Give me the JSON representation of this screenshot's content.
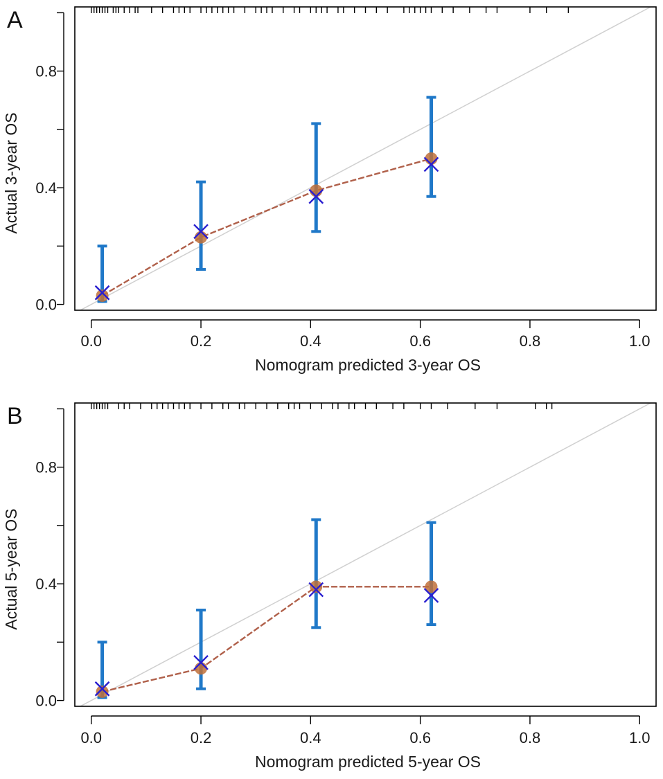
{
  "panels": [
    {
      "letter": "A",
      "xlabel": "Nomogram predicted 3-year OS",
      "ylabel": "Actual 3-year OS"
    },
    {
      "letter": "B",
      "xlabel": "Nomogram predicted 5-year OS",
      "ylabel": "Actual 5-year OS"
    }
  ],
  "colors": {
    "errorbar": "#1f78c8",
    "calibration_line": "#b0604a",
    "observed_dot": "#c0703a",
    "bias_corrected_x": "#2a1fd0",
    "ideal_line": "#d0d0d0",
    "rug": "#000000",
    "frame": "#000000"
  },
  "chart_data": [
    {
      "type": "scatter",
      "panel": "A",
      "title": "",
      "xlabel": "Nomogram predicted 3-year OS",
      "ylabel": "Actual 3-year OS",
      "xlim": [
        -0.03,
        1.03
      ],
      "ylim": [
        -0.02,
        1.02
      ],
      "xticks": [
        "0.0",
        "0.2",
        "0.4",
        "0.6",
        "0.8",
        "1.0"
      ],
      "xtick_values": [
        0.0,
        0.2,
        0.4,
        0.6,
        0.8,
        1.0
      ],
      "yticks": [
        "0.0",
        "0.4",
        "0.8"
      ],
      "ytick_values": [
        0.0,
        0.4,
        0.8
      ],
      "ymajor_ticks": [
        0.0,
        0.2,
        0.4,
        0.6,
        0.8,
        1.0
      ],
      "ideal_line": true,
      "grid": false,
      "points": [
        {
          "x": 0.02,
          "observed": 0.03,
          "bias_corrected": 0.04,
          "ci_low": 0.01,
          "ci_high": 0.2
        },
        {
          "x": 0.2,
          "observed": 0.23,
          "bias_corrected": 0.25,
          "ci_low": 0.12,
          "ci_high": 0.42
        },
        {
          "x": 0.41,
          "observed": 0.39,
          "bias_corrected": 0.37,
          "ci_low": 0.25,
          "ci_high": 0.62
        },
        {
          "x": 0.62,
          "observed": 0.5,
          "bias_corrected": 0.48,
          "ci_low": 0.37,
          "ci_high": 0.71
        }
      ],
      "rug": [
        0.0,
        0.005,
        0.01,
        0.015,
        0.02,
        0.025,
        0.03,
        0.04,
        0.045,
        0.05,
        0.06,
        0.07,
        0.08,
        0.085,
        0.11,
        0.13,
        0.15,
        0.16,
        0.17,
        0.18,
        0.2,
        0.21,
        0.22,
        0.23,
        0.24,
        0.25,
        0.26,
        0.28,
        0.3,
        0.31,
        0.32,
        0.33,
        0.35,
        0.37,
        0.38,
        0.4,
        0.41,
        0.42,
        0.43,
        0.45,
        0.46,
        0.48,
        0.5,
        0.52,
        0.54,
        0.57,
        0.58,
        0.59,
        0.6,
        0.61,
        0.62,
        0.64,
        0.66,
        0.69,
        0.72,
        0.74,
        0.8,
        0.83,
        0.87
      ]
    },
    {
      "type": "scatter",
      "panel": "B",
      "title": "",
      "xlabel": "Nomogram predicted 5-year OS",
      "ylabel": "Actual 5-year OS",
      "xlim": [
        -0.03,
        1.03
      ],
      "ylim": [
        -0.02,
        1.02
      ],
      "xticks": [
        "0.0",
        "0.2",
        "0.4",
        "0.6",
        "0.8",
        "1.0"
      ],
      "xtick_values": [
        0.0,
        0.2,
        0.4,
        0.6,
        0.8,
        1.0
      ],
      "yticks": [
        "0.0",
        "0.4",
        "0.8"
      ],
      "ytick_values": [
        0.0,
        0.4,
        0.8
      ],
      "ymajor_ticks": [
        0.0,
        0.2,
        0.4,
        0.6,
        0.8,
        1.0
      ],
      "ideal_line": true,
      "grid": false,
      "points": [
        {
          "x": 0.02,
          "observed": 0.03,
          "bias_corrected": 0.04,
          "ci_low": 0.01,
          "ci_high": 0.2
        },
        {
          "x": 0.2,
          "observed": 0.11,
          "bias_corrected": 0.13,
          "ci_low": 0.04,
          "ci_high": 0.31
        },
        {
          "x": 0.41,
          "observed": 0.39,
          "bias_corrected": 0.38,
          "ci_low": 0.25,
          "ci_high": 0.62
        },
        {
          "x": 0.62,
          "observed": 0.39,
          "bias_corrected": 0.36,
          "ci_low": 0.26,
          "ci_high": 0.61
        }
      ],
      "rug": [
        0.0,
        0.005,
        0.01,
        0.015,
        0.02,
        0.025,
        0.03,
        0.05,
        0.06,
        0.07,
        0.09,
        0.11,
        0.12,
        0.13,
        0.14,
        0.15,
        0.16,
        0.17,
        0.18,
        0.2,
        0.22,
        0.24,
        0.25,
        0.27,
        0.28,
        0.3,
        0.32,
        0.34,
        0.36,
        0.37,
        0.38,
        0.4,
        0.42,
        0.44,
        0.45,
        0.47,
        0.48,
        0.5,
        0.52,
        0.55,
        0.57,
        0.6,
        0.62,
        0.65,
        0.7,
        0.74,
        0.81,
        0.83,
        0.84
      ]
    }
  ]
}
